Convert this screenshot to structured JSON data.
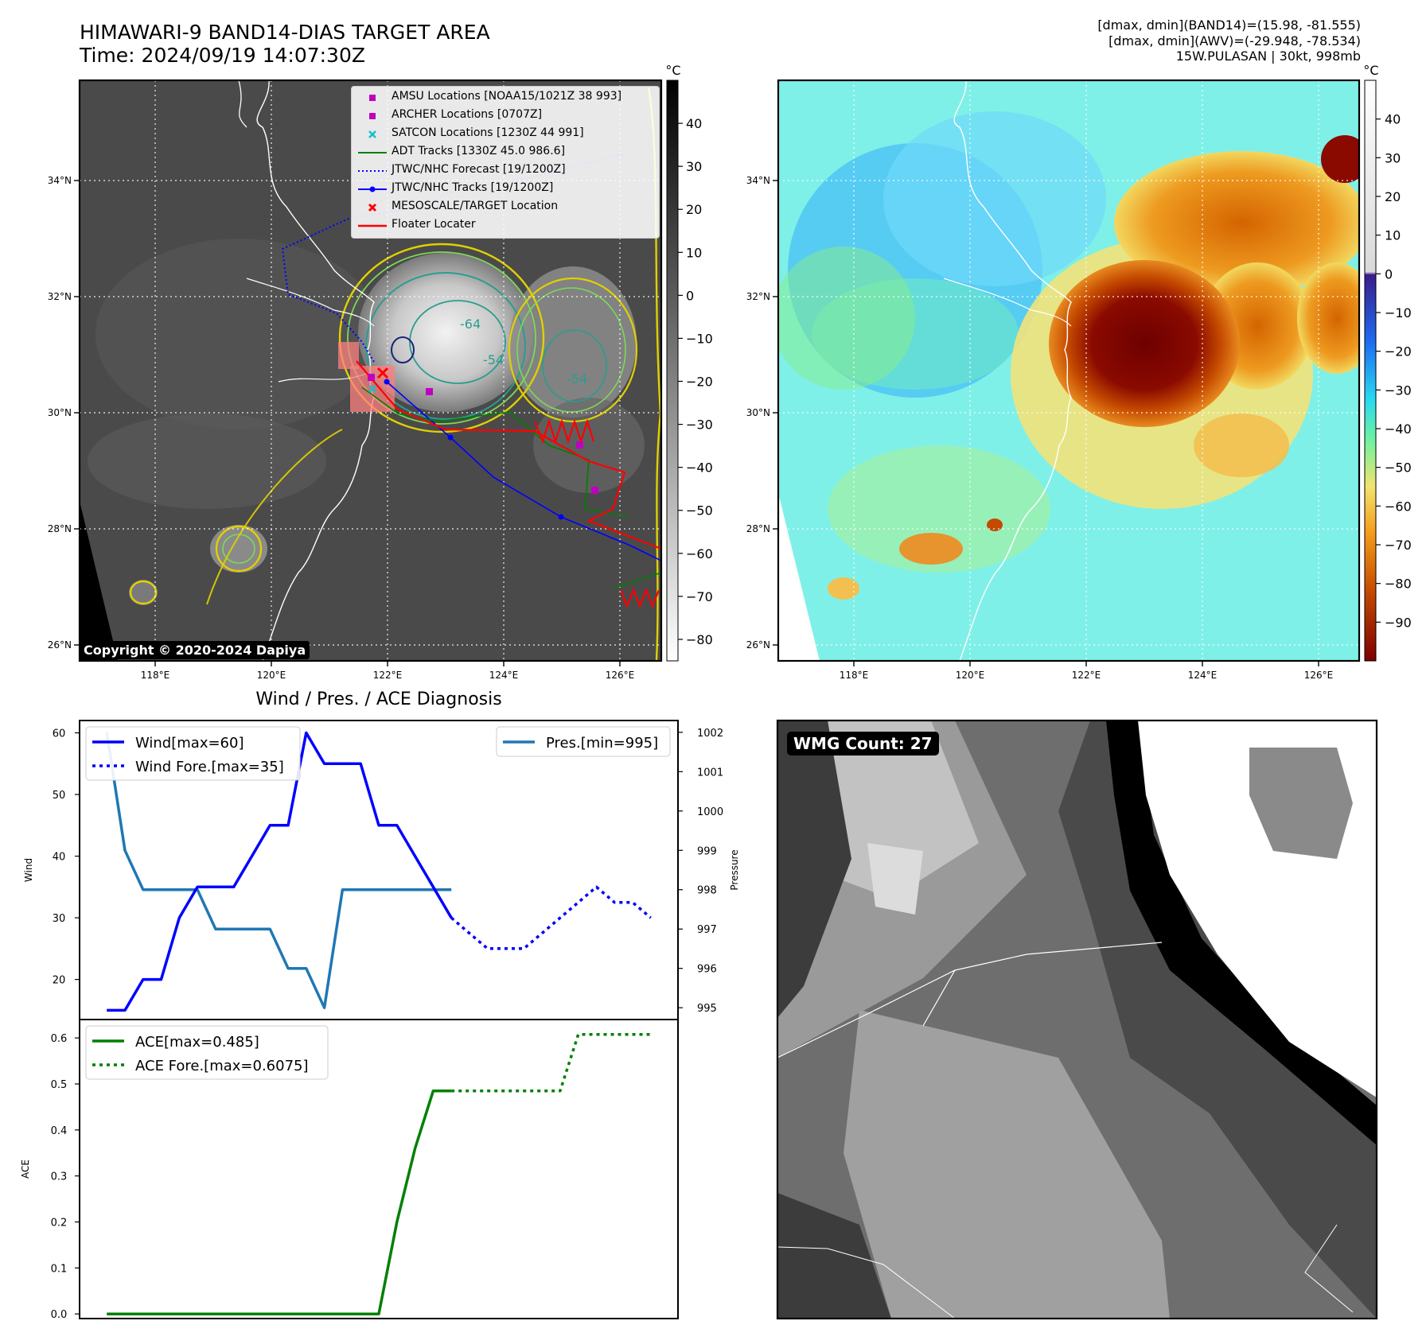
{
  "header": {
    "title_line1": "HIMAWARI-9 BAND14-DIAS TARGET AREA",
    "title_line2": "Time: 2024/09/19 14:07:30Z",
    "info_line1": "[dmax, dmin](BAND14)=(15.98, -81.555)",
    "info_line2": "[dmax, dmin](AWV)=(-29.948, -78.534)",
    "info_line3": "15W.PULASAN | 30kt, 998mb"
  },
  "colors": {
    "wind": "#0000ff",
    "pressure": "#1f77b4",
    "ace": "#008000",
    "adt": "#008000",
    "floater": "#ff0000",
    "archer": "#bf00bf",
    "satcon": "#17becf",
    "target": "#ff0000"
  },
  "map": {
    "lat_labels": [
      "26°N",
      "28°N",
      "30°N",
      "32°N",
      "34°N"
    ],
    "lon_labels": [
      "118°E",
      "120°E",
      "122°E",
      "124°E",
      "126°E"
    ],
    "copyright": "Copyright © 2020-2024 Dapiya",
    "legend": [
      {
        "label": "AMSU Locations [NOAA15/1021Z 38 993]",
        "symbol": "square-marker",
        "color": "#bf00bf"
      },
      {
        "label": "ARCHER Locations [0707Z]",
        "symbol": "square-marker",
        "color": "#bf00bf"
      },
      {
        "label": "SATCON Locations [1230Z 44 991]",
        "symbol": "x-marker",
        "color": "#17becf"
      },
      {
        "label": "ADT Tracks [1330Z 45.0 986.6]",
        "symbol": "line",
        "color": "#008000"
      },
      {
        "label": "JTWC/NHC Forecast [19/1200Z]",
        "symbol": "dotted-line",
        "color": "#0000ff"
      },
      {
        "label": "JTWC/NHC Tracks [19/1200Z]",
        "symbol": "line-dot",
        "color": "#0000ff"
      },
      {
        "label": "MESOSCALE/TARGET Location",
        "symbol": "x-marker",
        "color": "#ff0000"
      },
      {
        "label": "Floater Locater",
        "symbol": "line",
        "color": "#ff0000"
      }
    ],
    "contour_labels": [
      "-64",
      "-54",
      "-54"
    ]
  },
  "colorbar_gray": {
    "unit": "°C",
    "ticks": [
      "40",
      "30",
      "20",
      "10",
      "0",
      "−10",
      "−20",
      "−30",
      "−40",
      "−50",
      "−60",
      "−70",
      "−80"
    ]
  },
  "colorbar_color": {
    "unit": "°C",
    "ticks": [
      "40",
      "30",
      "20",
      "10",
      "0",
      "−10",
      "−20",
      "−30",
      "−40",
      "−50",
      "−60",
      "−70",
      "−80",
      "−90"
    ]
  },
  "wmg": {
    "label": "WMG Count: 27"
  },
  "chart_data": [
    {
      "type": "line",
      "title": "Wind / Pres. / ACE Diagnosis",
      "ylabel": "Wind",
      "y2label": "Pressure",
      "ylim": [
        13.5,
        62
      ],
      "y2lim": [
        994.7,
        1002.3
      ],
      "yticks": [
        20,
        30,
        40,
        50,
        60
      ],
      "y2ticks": [
        995,
        996,
        997,
        998,
        999,
        1000,
        1001,
        1002
      ],
      "series": [
        {
          "name": "Wind[max=60]",
          "style": "solid",
          "axis": "left",
          "x": [
            0,
            1,
            2,
            3,
            4,
            5,
            6,
            7,
            8,
            9,
            10,
            11,
            12,
            13,
            14,
            15,
            16,
            17,
            18,
            19
          ],
          "values": [
            15,
            15,
            20,
            20,
            30,
            35,
            35,
            35,
            40,
            45,
            45,
            60,
            55,
            55,
            55,
            45,
            45,
            40,
            35,
            30
          ]
        },
        {
          "name": "Wind Fore.[max=35]",
          "style": "dotted",
          "axis": "left",
          "x": [
            19,
            20,
            21,
            22,
            23,
            24,
            25,
            26,
            27,
            28,
            29,
            30
          ],
          "values": [
            30,
            27.5,
            25,
            25,
            25,
            27.5,
            30,
            32.5,
            35,
            32.5,
            32.5,
            30
          ]
        },
        {
          "name": "Pres.[min=995]",
          "style": "solid",
          "axis": "right",
          "x": [
            0,
            1,
            2,
            3,
            4,
            5,
            6,
            7,
            8,
            9,
            10,
            11,
            12,
            13,
            14,
            15,
            16,
            17,
            18,
            19
          ],
          "values": [
            1002,
            999,
            998,
            998,
            998,
            998,
            997,
            997,
            997,
            997,
            996,
            996,
            995,
            998,
            998,
            998,
            998,
            998,
            998,
            998
          ]
        }
      ],
      "legend": [
        {
          "label": "Wind[max=60]",
          "style": "solid"
        },
        {
          "label": "Wind Fore.[max=35]",
          "style": "dotted"
        },
        {
          "label": "Pres.[min=995]",
          "style": "solid"
        }
      ]
    },
    {
      "type": "line",
      "title": "",
      "ylabel": "ACE",
      "ylim": [
        -0.01,
        0.64
      ],
      "yticks": [
        "0.0",
        "0.1",
        "0.2",
        "0.3",
        "0.4",
        "0.5",
        "0.6"
      ],
      "series": [
        {
          "name": "ACE[max=0.485]",
          "style": "solid",
          "x": [
            0,
            1,
            2,
            3,
            4,
            5,
            6,
            7,
            8,
            9,
            10,
            11,
            12,
            13,
            14,
            15,
            16,
            17,
            18,
            19
          ],
          "values": [
            0,
            0,
            0,
            0,
            0,
            0,
            0,
            0,
            0,
            0,
            0,
            0,
            0,
            0,
            0,
            0,
            0.2,
            0.36,
            0.485,
            0.485
          ]
        },
        {
          "name": "ACE Fore.[max=0.6075]",
          "style": "dotted",
          "x": [
            19,
            20,
            21,
            22,
            23,
            24,
            25,
            26,
            27,
            28,
            29,
            30
          ],
          "values": [
            0.485,
            0.485,
            0.485,
            0.485,
            0.485,
            0.485,
            0.485,
            0.6075,
            0.6075,
            0.6075,
            0.6075,
            0.6075
          ]
        }
      ],
      "legend": [
        {
          "label": "ACE[max=0.485]",
          "style": "solid"
        },
        {
          "label": "ACE Fore.[max=0.6075]",
          "style": "dotted"
        }
      ]
    }
  ]
}
